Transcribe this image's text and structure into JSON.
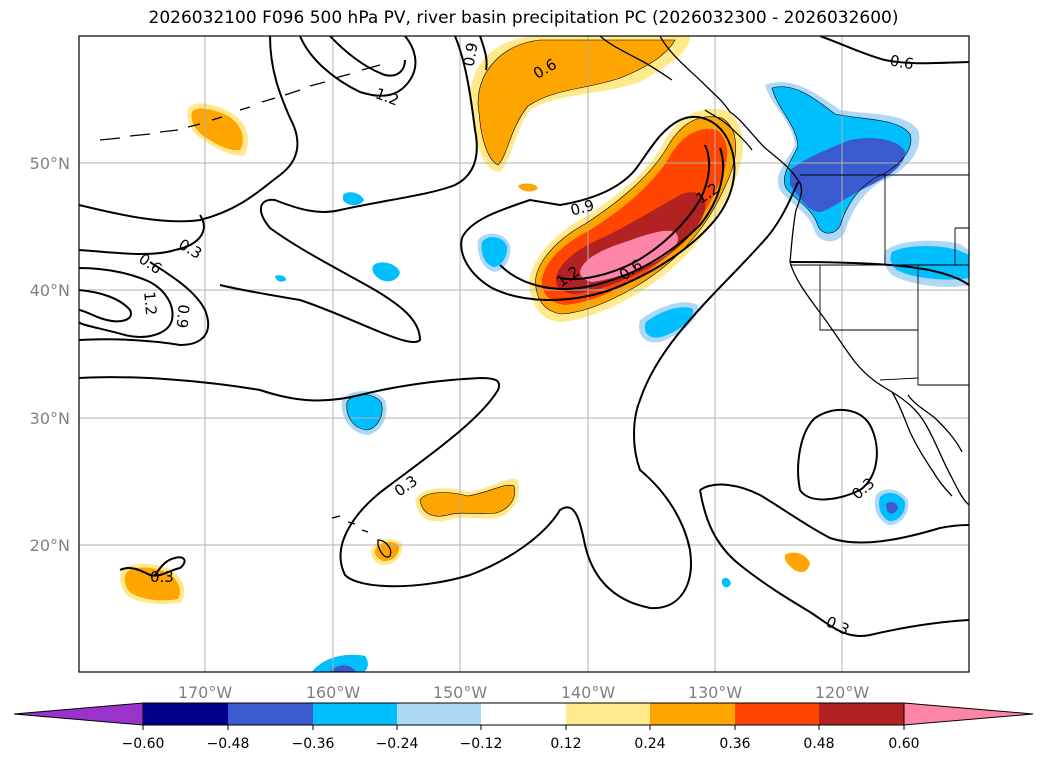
{
  "title": "2026032100 F096 500 hPa PV, river basin precipitation PC (2026032300 - 2026032600)",
  "lon_labels": [
    "170°W",
    "160°W",
    "150°W",
    "140°W",
    "130°W",
    "120°W"
  ],
  "lat_labels": [
    "50°N",
    "40°N",
    "30°N",
    "20°N"
  ],
  "colorbar": {
    "ticks": [
      "−0.60",
      "−0.48",
      "−0.36",
      "−0.24",
      "−0.12",
      "0.12",
      "0.24",
      "0.36",
      "0.48",
      "0.60"
    ],
    "colors": [
      "#9933cc",
      "#00008b",
      "#3a5bcf",
      "#00bfff",
      "#add8f6",
      "#ffffff",
      "#ffe98a",
      "#ffa500",
      "#ff4500",
      "#b22222",
      "#ff85a8"
    ]
  },
  "contour_labels": [
    "0.6",
    "0.9",
    "1.2",
    "0.6",
    "0.3",
    "0.6",
    "1.2",
    "0.9",
    "0.9",
    "1.2",
    "1.2",
    "0.6",
    "0.3",
    "0.3",
    "0.3",
    "0.3"
  ],
  "colors": {
    "positive_light": "#ffe98a",
    "positive_mid": "#ffa500",
    "positive_strong": "#ff4500",
    "positive_very_strong": "#b22222",
    "positive_max": "#ff85a8",
    "negative_light": "#add8f6",
    "negative_mid": "#00bfff",
    "negative_strong": "#3a5bcf",
    "grid": "#b0b0b0"
  }
}
